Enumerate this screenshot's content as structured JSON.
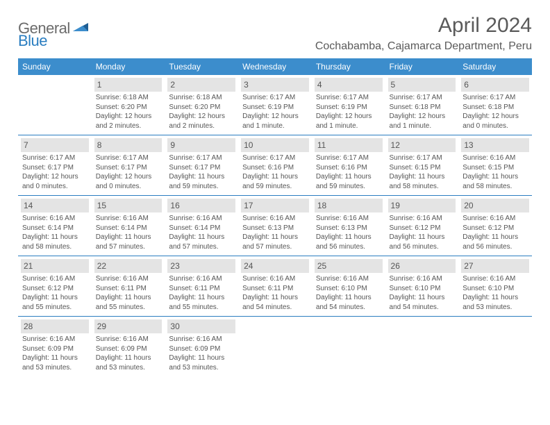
{
  "logo": {
    "text1": "General",
    "text2": "Blue"
  },
  "title": "April 2024",
  "location": "Cochabamba, Cajamarca Department, Peru",
  "colors": {
    "header_blue": "#3c8dcc",
    "border_blue": "#2a7dc0",
    "daynum_bg": "#e4e4e4",
    "text_gray": "#555555"
  },
  "dow": [
    "Sunday",
    "Monday",
    "Tuesday",
    "Wednesday",
    "Thursday",
    "Friday",
    "Saturday"
  ],
  "weeks": [
    [
      {
        "n": "",
        "lines": [
          "",
          "",
          "",
          ""
        ]
      },
      {
        "n": "1",
        "lines": [
          "Sunrise: 6:18 AM",
          "Sunset: 6:20 PM",
          "Daylight: 12 hours",
          "and 2 minutes."
        ]
      },
      {
        "n": "2",
        "lines": [
          "Sunrise: 6:18 AM",
          "Sunset: 6:20 PM",
          "Daylight: 12 hours",
          "and 2 minutes."
        ]
      },
      {
        "n": "3",
        "lines": [
          "Sunrise: 6:17 AM",
          "Sunset: 6:19 PM",
          "Daylight: 12 hours",
          "and 1 minute."
        ]
      },
      {
        "n": "4",
        "lines": [
          "Sunrise: 6:17 AM",
          "Sunset: 6:19 PM",
          "Daylight: 12 hours",
          "and 1 minute."
        ]
      },
      {
        "n": "5",
        "lines": [
          "Sunrise: 6:17 AM",
          "Sunset: 6:18 PM",
          "Daylight: 12 hours",
          "and 1 minute."
        ]
      },
      {
        "n": "6",
        "lines": [
          "Sunrise: 6:17 AM",
          "Sunset: 6:18 PM",
          "Daylight: 12 hours",
          "and 0 minutes."
        ]
      }
    ],
    [
      {
        "n": "7",
        "lines": [
          "Sunrise: 6:17 AM",
          "Sunset: 6:17 PM",
          "Daylight: 12 hours",
          "and 0 minutes."
        ]
      },
      {
        "n": "8",
        "lines": [
          "Sunrise: 6:17 AM",
          "Sunset: 6:17 PM",
          "Daylight: 12 hours",
          "and 0 minutes."
        ]
      },
      {
        "n": "9",
        "lines": [
          "Sunrise: 6:17 AM",
          "Sunset: 6:17 PM",
          "Daylight: 11 hours",
          "and 59 minutes."
        ]
      },
      {
        "n": "10",
        "lines": [
          "Sunrise: 6:17 AM",
          "Sunset: 6:16 PM",
          "Daylight: 11 hours",
          "and 59 minutes."
        ]
      },
      {
        "n": "11",
        "lines": [
          "Sunrise: 6:17 AM",
          "Sunset: 6:16 PM",
          "Daylight: 11 hours",
          "and 59 minutes."
        ]
      },
      {
        "n": "12",
        "lines": [
          "Sunrise: 6:17 AM",
          "Sunset: 6:15 PM",
          "Daylight: 11 hours",
          "and 58 minutes."
        ]
      },
      {
        "n": "13",
        "lines": [
          "Sunrise: 6:16 AM",
          "Sunset: 6:15 PM",
          "Daylight: 11 hours",
          "and 58 minutes."
        ]
      }
    ],
    [
      {
        "n": "14",
        "lines": [
          "Sunrise: 6:16 AM",
          "Sunset: 6:14 PM",
          "Daylight: 11 hours",
          "and 58 minutes."
        ]
      },
      {
        "n": "15",
        "lines": [
          "Sunrise: 6:16 AM",
          "Sunset: 6:14 PM",
          "Daylight: 11 hours",
          "and 57 minutes."
        ]
      },
      {
        "n": "16",
        "lines": [
          "Sunrise: 6:16 AM",
          "Sunset: 6:14 PM",
          "Daylight: 11 hours",
          "and 57 minutes."
        ]
      },
      {
        "n": "17",
        "lines": [
          "Sunrise: 6:16 AM",
          "Sunset: 6:13 PM",
          "Daylight: 11 hours",
          "and 57 minutes."
        ]
      },
      {
        "n": "18",
        "lines": [
          "Sunrise: 6:16 AM",
          "Sunset: 6:13 PM",
          "Daylight: 11 hours",
          "and 56 minutes."
        ]
      },
      {
        "n": "19",
        "lines": [
          "Sunrise: 6:16 AM",
          "Sunset: 6:12 PM",
          "Daylight: 11 hours",
          "and 56 minutes."
        ]
      },
      {
        "n": "20",
        "lines": [
          "Sunrise: 6:16 AM",
          "Sunset: 6:12 PM",
          "Daylight: 11 hours",
          "and 56 minutes."
        ]
      }
    ],
    [
      {
        "n": "21",
        "lines": [
          "Sunrise: 6:16 AM",
          "Sunset: 6:12 PM",
          "Daylight: 11 hours",
          "and 55 minutes."
        ]
      },
      {
        "n": "22",
        "lines": [
          "Sunrise: 6:16 AM",
          "Sunset: 6:11 PM",
          "Daylight: 11 hours",
          "and 55 minutes."
        ]
      },
      {
        "n": "23",
        "lines": [
          "Sunrise: 6:16 AM",
          "Sunset: 6:11 PM",
          "Daylight: 11 hours",
          "and 55 minutes."
        ]
      },
      {
        "n": "24",
        "lines": [
          "Sunrise: 6:16 AM",
          "Sunset: 6:11 PM",
          "Daylight: 11 hours",
          "and 54 minutes."
        ]
      },
      {
        "n": "25",
        "lines": [
          "Sunrise: 6:16 AM",
          "Sunset: 6:10 PM",
          "Daylight: 11 hours",
          "and 54 minutes."
        ]
      },
      {
        "n": "26",
        "lines": [
          "Sunrise: 6:16 AM",
          "Sunset: 6:10 PM",
          "Daylight: 11 hours",
          "and 54 minutes."
        ]
      },
      {
        "n": "27",
        "lines": [
          "Sunrise: 6:16 AM",
          "Sunset: 6:10 PM",
          "Daylight: 11 hours",
          "and 53 minutes."
        ]
      }
    ],
    [
      {
        "n": "28",
        "lines": [
          "Sunrise: 6:16 AM",
          "Sunset: 6:09 PM",
          "Daylight: 11 hours",
          "and 53 minutes."
        ]
      },
      {
        "n": "29",
        "lines": [
          "Sunrise: 6:16 AM",
          "Sunset: 6:09 PM",
          "Daylight: 11 hours",
          "and 53 minutes."
        ]
      },
      {
        "n": "30",
        "lines": [
          "Sunrise: 6:16 AM",
          "Sunset: 6:09 PM",
          "Daylight: 11 hours",
          "and 53 minutes."
        ]
      },
      {
        "n": "",
        "lines": [
          "",
          "",
          "",
          ""
        ]
      },
      {
        "n": "",
        "lines": [
          "",
          "",
          "",
          ""
        ]
      },
      {
        "n": "",
        "lines": [
          "",
          "",
          "",
          ""
        ]
      },
      {
        "n": "",
        "lines": [
          "",
          "",
          "",
          ""
        ]
      }
    ]
  ]
}
